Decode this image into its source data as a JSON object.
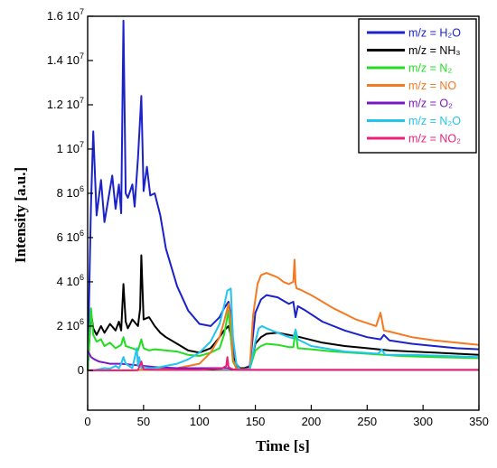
{
  "chart_data": {
    "type": "line",
    "xlabel": "Time [s]",
    "ylabel": "Intensity [a.u.]",
    "xlim": [
      0,
      350
    ],
    "ylim": [
      -1800000,
      16000000
    ],
    "grid": false,
    "legend_position": "top-right",
    "x_ticks": [
      0,
      50,
      100,
      150,
      200,
      250,
      300,
      350
    ],
    "y_ticks": [
      {
        "value": 0,
        "mantissa": "0",
        "exp": ""
      },
      {
        "value": 2000000,
        "mantissa": "2 10",
        "exp": "6"
      },
      {
        "value": 4000000,
        "mantissa": "4 10",
        "exp": "6"
      },
      {
        "value": 6000000,
        "mantissa": "6 10",
        "exp": "6"
      },
      {
        "value": 8000000,
        "mantissa": "8 10",
        "exp": "6"
      },
      {
        "value": 10000000,
        "mantissa": "1 10",
        "exp": "7"
      },
      {
        "value": 12000000,
        "mantissa": "1.2 10",
        "exp": "7"
      },
      {
        "value": 14000000,
        "mantissa": "1.4 10",
        "exp": "7"
      },
      {
        "value": 16000000,
        "mantissa": "1.6 10",
        "exp": "7"
      }
    ],
    "series": [
      {
        "name": "m/z = H₂O",
        "color": "#1a22c8",
        "x": [
          0,
          3,
          5,
          8,
          12,
          15,
          18,
          22,
          25,
          28,
          30,
          32,
          34,
          36,
          40,
          42,
          45,
          48,
          50,
          53,
          56,
          60,
          65,
          70,
          80,
          90,
          100,
          110,
          118,
          122,
          126,
          128,
          130,
          133,
          136,
          140,
          145,
          150,
          155,
          160,
          170,
          180,
          184,
          186,
          188,
          195,
          210,
          230,
          250,
          262,
          265,
          270,
          290,
          310,
          330,
          350
        ],
        "y": [
          0,
          7500000,
          10800000,
          7000000,
          8600000,
          6700000,
          7600000,
          8800000,
          7300000,
          8400000,
          7100000,
          15800000,
          8000000,
          7800000,
          8400000,
          7400000,
          9600000,
          12400000,
          8100000,
          9200000,
          7900000,
          8000000,
          7000000,
          5500000,
          3800000,
          2700000,
          2100000,
          2000000,
          2400000,
          2800000,
          3100000,
          2500000,
          1000000,
          300000,
          100000,
          100000,
          200000,
          2600000,
          3200000,
          3400000,
          3300000,
          3000000,
          3100000,
          2400000,
          2900000,
          2700000,
          2200000,
          1800000,
          1500000,
          1400000,
          1600000,
          1350000,
          1200000,
          1100000,
          1000000,
          950000
        ]
      },
      {
        "name": "m/z = NH₃",
        "color": "#000000",
        "x": [
          0,
          3,
          5,
          8,
          12,
          15,
          20,
          25,
          28,
          30,
          32,
          34,
          36,
          40,
          45,
          47,
          48,
          50,
          55,
          60,
          65,
          70,
          80,
          90,
          100,
          110,
          118,
          122,
          126,
          128,
          130,
          133,
          136,
          140,
          145,
          150,
          155,
          160,
          170,
          180,
          190,
          210,
          230,
          250,
          270,
          290,
          310,
          330,
          350
        ],
        "y": [
          0,
          2600000,
          1900000,
          1600000,
          2000000,
          1700000,
          2100000,
          1800000,
          2200000,
          1800000,
          3900000,
          2200000,
          1900000,
          2300000,
          2000000,
          2800000,
          5200000,
          2300000,
          2400000,
          2000000,
          1700000,
          1500000,
          1200000,
          900000,
          800000,
          1000000,
          1500000,
          1800000,
          2000000,
          1600000,
          600000,
          200000,
          100000,
          100000,
          100000,
          1200000,
          1500000,
          1650000,
          1700000,
          1600000,
          1500000,
          1250000,
          1100000,
          1000000,
          900000,
          850000,
          800000,
          750000,
          700000
        ]
      },
      {
        "name": "m/z = N₂",
        "color": "#22dd22",
        "x": [
          0,
          3,
          5,
          8,
          12,
          15,
          20,
          25,
          30,
          32,
          34,
          40,
          45,
          48,
          50,
          55,
          60,
          70,
          80,
          90,
          100,
          110,
          118,
          122,
          126,
          128,
          130,
          133,
          136,
          140,
          145,
          150,
          155,
          160,
          170,
          180,
          184,
          186,
          188,
          200,
          220,
          250,
          280,
          310,
          350
        ],
        "y": [
          0,
          2800000,
          1600000,
          1300000,
          1400000,
          1100000,
          1250000,
          1000000,
          1150000,
          1500000,
          1100000,
          1000000,
          900000,
          1400000,
          1000000,
          900000,
          950000,
          900000,
          850000,
          700000,
          650000,
          800000,
          1000000,
          1600000,
          2700000,
          1500000,
          400000,
          100000,
          50000,
          50000,
          80000,
          900000,
          1100000,
          1200000,
          1150000,
          1050000,
          1050000,
          1800000,
          1000000,
          950000,
          850000,
          750000,
          650000,
          600000,
          550000
        ]
      },
      {
        "name": "m/z = NO",
        "color": "#f47a22",
        "x": [
          0,
          30,
          40,
          60,
          80,
          100,
          110,
          118,
          122,
          126,
          128,
          130,
          133,
          136,
          140,
          145,
          148,
          152,
          155,
          160,
          165,
          170,
          175,
          180,
          184,
          185,
          186,
          187,
          190,
          200,
          220,
          240,
          258,
          262,
          265,
          270,
          290,
          310,
          330,
          350
        ],
        "y": [
          0,
          0,
          0,
          50000,
          100000,
          300000,
          800000,
          1500000,
          2200000,
          3000000,
          2200000,
          500000,
          100000,
          50000,
          50000,
          80000,
          2500000,
          3900000,
          4300000,
          4400000,
          4300000,
          4200000,
          4000000,
          3900000,
          4000000,
          5000000,
          3900000,
          3700000,
          3650000,
          3400000,
          2800000,
          2300000,
          2000000,
          2600000,
          1800000,
          1750000,
          1500000,
          1350000,
          1250000,
          1150000
        ]
      },
      {
        "name": "m/z = O₂",
        "color": "#7a18c0",
        "x": [
          0,
          3,
          6,
          10,
          15,
          20,
          30,
          40,
          50,
          60,
          80,
          100,
          120,
          125,
          130,
          135,
          140,
          160,
          200,
          250,
          300,
          350
        ],
        "y": [
          900000,
          600000,
          500000,
          400000,
          350000,
          300000,
          300000,
          250000,
          200000,
          150000,
          100000,
          100000,
          100000,
          100000,
          50000,
          30000,
          20000,
          20000,
          20000,
          20000,
          20000,
          20000
        ]
      },
      {
        "name": "m/z = N₂O",
        "color": "#22c4f0",
        "x": [
          0,
          5,
          10,
          15,
          20,
          25,
          28,
          30,
          32,
          34,
          40,
          44,
          45,
          46,
          48,
          50,
          55,
          60,
          70,
          80,
          90,
          100,
          110,
          118,
          122,
          125,
          128,
          130,
          133,
          136,
          140,
          145,
          150,
          153,
          156,
          160,
          170,
          180,
          184,
          186,
          188,
          200,
          230,
          260,
          263,
          266,
          290,
          320,
          350
        ],
        "y": [
          0,
          0,
          50000,
          100000,
          80000,
          200000,
          100000,
          300000,
          600000,
          300000,
          100000,
          1000000,
          200000,
          600000,
          100000,
          150000,
          100000,
          100000,
          200000,
          300000,
          500000,
          800000,
          1300000,
          2100000,
          2900000,
          3600000,
          3700000,
          1500000,
          300000,
          50000,
          30000,
          50000,
          1300000,
          1900000,
          2000000,
          1900000,
          1700000,
          1500000,
          1450000,
          1850000,
          1400000,
          1100000,
          850000,
          750000,
          950000,
          700000,
          700000,
          650000,
          600000
        ]
      },
      {
        "name": "m/z = NO₂",
        "color": "#e8207a",
        "x": [
          0,
          40,
          45,
          48,
          50,
          60,
          80,
          100,
          120,
          124,
          125,
          126,
          130,
          140,
          160,
          200,
          250,
          300,
          350
        ],
        "y": [
          0,
          0,
          10000,
          400000,
          50000,
          30000,
          20000,
          30000,
          80000,
          200000,
          600000,
          150000,
          30000,
          20000,
          20000,
          20000,
          20000,
          20000,
          20000
        ]
      }
    ]
  }
}
